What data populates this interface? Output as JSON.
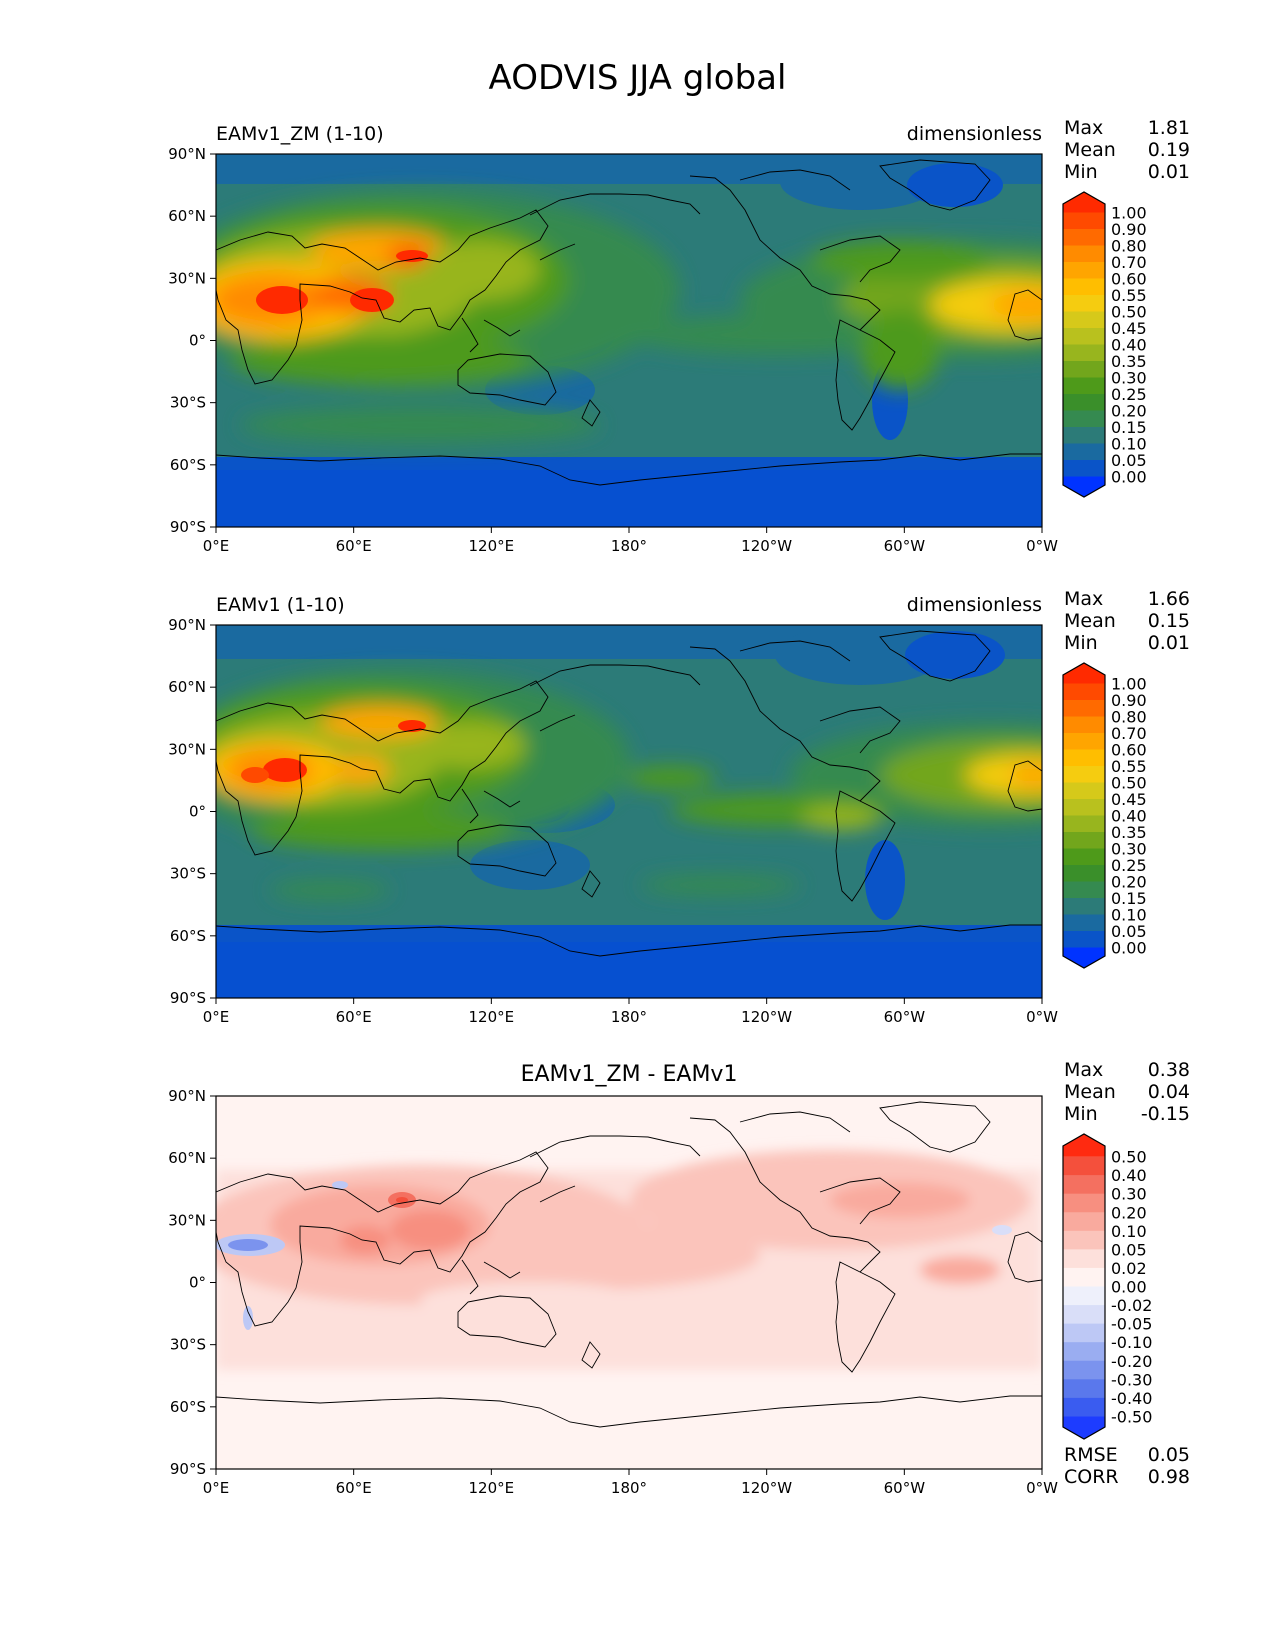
{
  "title": "AODVIS JJA global",
  "panels": [
    {
      "id": "test",
      "left_label": "EAMv1_ZM (1-10)",
      "center_label": "",
      "right_label": "dimensionless",
      "stats": [
        {
          "label": "Max",
          "value": "1.81"
        },
        {
          "label": "Mean",
          "value": "0.19"
        },
        {
          "label": "Min",
          "value": "0.01"
        }
      ],
      "colorbar": {
        "ticks": [
          "1.00",
          "0.90",
          "0.80",
          "0.70",
          "0.60",
          "0.55",
          "0.50",
          "0.45",
          "0.40",
          "0.35",
          "0.30",
          "0.25",
          "0.20",
          "0.15",
          "0.10",
          "0.05",
          "0.00"
        ],
        "colors": [
          "#ff2a00",
          "#ff4a00",
          "#ff6a00",
          "#ff8b00",
          "#ffa500",
          "#ffbe00",
          "#f5cc10",
          "#d6c91a",
          "#b9c11e",
          "#98b51e",
          "#72a61c",
          "#4e9a1a",
          "#3a8f2a",
          "#358a50",
          "#2c7b78",
          "#1a6aa0",
          "#0a54c8",
          "#0033ff"
        ]
      },
      "extra_stats": []
    },
    {
      "id": "reference",
      "left_label": "EAMv1 (1-10)",
      "center_label": "",
      "right_label": "dimensionless",
      "stats": [
        {
          "label": "Max",
          "value": "1.66"
        },
        {
          "label": "Mean",
          "value": "0.15"
        },
        {
          "label": "Min",
          "value": "0.01"
        }
      ],
      "colorbar": {
        "ticks": [
          "1.00",
          "0.90",
          "0.80",
          "0.70",
          "0.60",
          "0.55",
          "0.50",
          "0.45",
          "0.40",
          "0.35",
          "0.30",
          "0.25",
          "0.20",
          "0.15",
          "0.10",
          "0.05",
          "0.00"
        ],
        "colors": [
          "#ff2a00",
          "#ff4a00",
          "#ff6a00",
          "#ff8b00",
          "#ffa500",
          "#ffbe00",
          "#f5cc10",
          "#d6c91a",
          "#b9c11e",
          "#98b51e",
          "#72a61c",
          "#4e9a1a",
          "#3a8f2a",
          "#358a50",
          "#2c7b78",
          "#1a6aa0",
          "#0a54c8",
          "#0033ff"
        ]
      },
      "extra_stats": []
    },
    {
      "id": "difference",
      "left_label": "",
      "center_label": "EAMv1_ZM - EAMv1",
      "right_label": "",
      "stats": [
        {
          "label": "Max",
          "value": "0.38"
        },
        {
          "label": "Mean",
          "value": "0.04"
        },
        {
          "label": "Min",
          "value": "-0.15"
        }
      ],
      "colorbar": {
        "ticks": [
          "0.50",
          "0.40",
          "0.30",
          "0.20",
          "0.10",
          "0.05",
          "0.02",
          "0.00",
          "-0.02",
          "-0.05",
          "-0.10",
          "-0.20",
          "-0.30",
          "-0.40",
          "-0.50"
        ],
        "colors": [
          "#ff2a10",
          "#f4503c",
          "#f47060",
          "#f78f80",
          "#f9aa9e",
          "#fbc4bb",
          "#fde0db",
          "#fff3f1",
          "#eef0fb",
          "#d9def8",
          "#bdc8f5",
          "#9aadf1",
          "#7b93ee",
          "#5a78ec",
          "#3a5cf0",
          "#1d3cff"
        ]
      },
      "extra_stats": [
        {
          "label": "RMSE",
          "value": "0.05"
        },
        {
          "label": "CORR",
          "value": "0.98"
        }
      ]
    }
  ],
  "axes": {
    "lat_ticks": [
      "90°N",
      "60°N",
      "30°N",
      "0°",
      "30°S",
      "60°S",
      "90°S"
    ],
    "lon_ticks": [
      "0°E",
      "60°E",
      "120°E",
      "180°",
      "120°W",
      "60°W",
      "0°W"
    ]
  },
  "colors": {
    "ocean_background": "#2c7b78",
    "polar_band": "#0a54c8",
    "arctic_band": "#1a6aa0",
    "diff_background": "#fde0db",
    "coastline": "#000000"
  }
}
